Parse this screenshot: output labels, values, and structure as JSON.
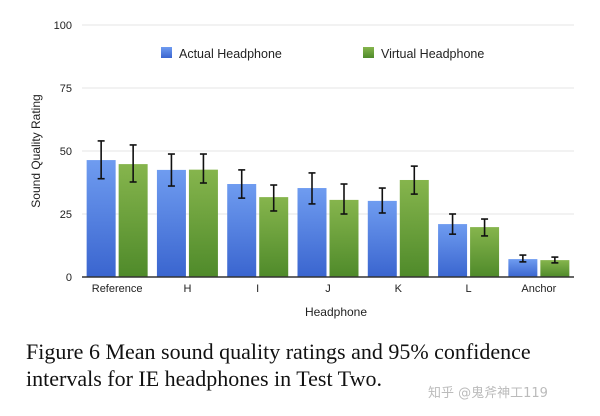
{
  "chart_data": {
    "type": "bar",
    "title": "",
    "xlabel": "Headphone",
    "ylabel": "Sound Quality Rating",
    "ylim": [
      0,
      100
    ],
    "yticks": [
      "0",
      "25",
      "50",
      "75",
      "100"
    ],
    "grid": true,
    "legend_position": "top-center",
    "categories": [
      "Reference",
      "H",
      "I",
      "J",
      "K",
      "L",
      "Anchor"
    ],
    "series": [
      {
        "name": "Actual Headphone",
        "color": "#4a7be0",
        "values": [
          46.4,
          42.5,
          36.9,
          35.3,
          30.2,
          21.0,
          7.1
        ],
        "ci_low": [
          39.0,
          36.1,
          31.3,
          29.0,
          25.4,
          17.0,
          6.0
        ],
        "ci_high": [
          54.0,
          48.8,
          42.5,
          41.3,
          35.3,
          25.0,
          8.7
        ]
      },
      {
        "name": "Virtual Headphone",
        "color": "#6a9e3a",
        "values": [
          44.8,
          42.6,
          31.7,
          30.6,
          38.5,
          19.8,
          6.7
        ],
        "ci_low": [
          37.7,
          37.3,
          26.2,
          25.0,
          32.9,
          16.3,
          5.6
        ],
        "ci_high": [
          52.4,
          48.8,
          36.5,
          36.9,
          44.0,
          23.0,
          7.9
        ]
      }
    ]
  },
  "caption": "Figure 6 Mean sound quality ratings and 95% confidence intervals for IE headphones in Test Two.",
  "watermark": "知乎 @鬼斧神工119"
}
